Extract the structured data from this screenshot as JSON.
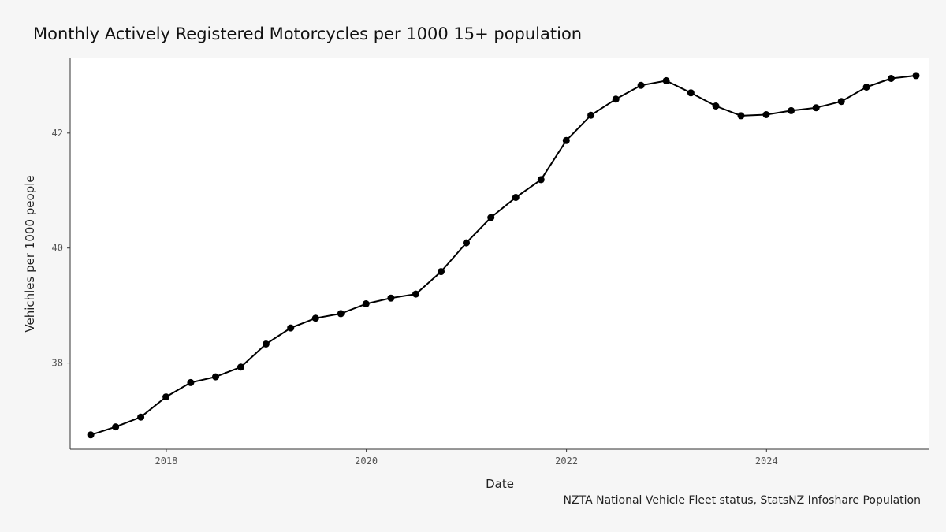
{
  "chart_data": {
    "type": "line",
    "title": "Monthly Actively Registered Motorcycles per 1000 15+ population",
    "xlabel": "Date",
    "ylabel": "Vehichles per 1000 people",
    "caption": "NZTA National Vehicle Fleet status, StatsNZ Infoshare Population",
    "x_ticks": [
      "2018",
      "2020",
      "2022",
      "2024"
    ],
    "y_ticks": [
      "38",
      "40",
      "42"
    ],
    "xlim": [
      "2017-01-15",
      "2025-08-15"
    ],
    "ylim": [
      36.5,
      43.3
    ],
    "grid": false,
    "legend": "none",
    "line_color": "#000000",
    "panel_color": "#ffffff",
    "background_color": "#f6f6f6",
    "series": [
      {
        "x": [
          "2017-03-31",
          "2017-06-30",
          "2017-09-30",
          "2017-12-31",
          "2018-03-31",
          "2018-06-30",
          "2018-09-30",
          "2018-12-31",
          "2019-03-31",
          "2019-06-30",
          "2019-09-30",
          "2019-12-31",
          "2020-03-31",
          "2020-06-30",
          "2020-09-30",
          "2020-12-31",
          "2021-03-31",
          "2021-06-30",
          "2021-09-30",
          "2021-12-31",
          "2022-03-31",
          "2022-06-30",
          "2022-09-30",
          "2022-12-31",
          "2023-03-31",
          "2023-06-30",
          "2023-09-30",
          "2023-12-31",
          "2024-03-31",
          "2024-06-30",
          "2024-09-30",
          "2024-12-31",
          "2025-03-31",
          "2025-06-30"
        ],
        "values": [
          36.75,
          36.89,
          37.06,
          37.41,
          37.66,
          37.76,
          37.93,
          38.33,
          38.61,
          38.78,
          38.86,
          39.03,
          39.13,
          39.2,
          39.59,
          40.09,
          40.53,
          40.88,
          41.19,
          41.87,
          42.31,
          42.59,
          42.83,
          42.91,
          42.7,
          42.47,
          42.3,
          42.32,
          42.39,
          42.44,
          42.55,
          42.8,
          42.95,
          43.0
        ]
      }
    ]
  }
}
